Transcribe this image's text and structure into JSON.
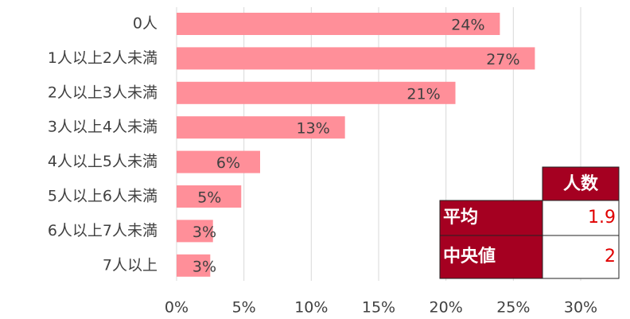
{
  "chart_data": {
    "type": "barh",
    "categories": [
      "0人",
      "1人以上2人未満",
      "2人以上3人未満",
      "3人以上4人未満",
      "4人以上5人未満",
      "5人以上6人未満",
      "6人以上7人未満",
      "7人以上"
    ],
    "values": [
      24.0,
      26.6,
      20.7,
      12.5,
      6.2,
      4.8,
      2.7,
      2.5
    ],
    "value_labels": [
      "24%",
      "27%",
      "21%",
      "13%",
      "6%",
      "5%",
      "3%",
      "3%"
    ],
    "color": "#ff8f99",
    "xlim": [
      0,
      30
    ],
    "xticks": [
      {
        "value": 0,
        "label": "0%"
      },
      {
        "value": 5,
        "label": "5%"
      },
      {
        "value": 10,
        "label": "10%"
      },
      {
        "value": 15,
        "label": "15%"
      },
      {
        "value": 20,
        "label": "20%"
      },
      {
        "value": 25,
        "label": "25%"
      },
      {
        "value": 30,
        "label": "30%"
      }
    ],
    "grid": true
  },
  "table": {
    "header": "人数",
    "rows": [
      [
        "平均",
        1.9
      ],
      [
        "中央値",
        2
      ]
    ]
  }
}
